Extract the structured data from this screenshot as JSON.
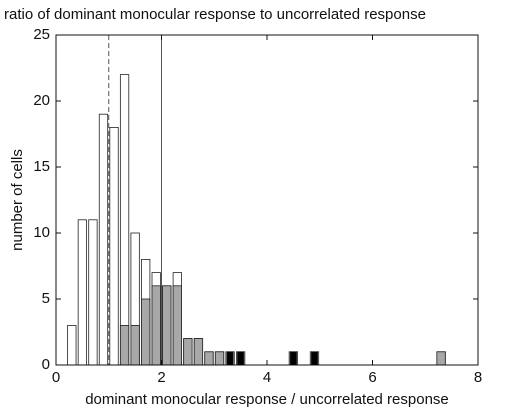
{
  "chart_data": {
    "type": "histogram",
    "title": "ratio of dominant monocular response to uncorrelated response",
    "x_label": "dominant monocular response / uncorrelated response",
    "y_label": "number of cells",
    "bins": [
      0.2,
      0.4,
      0.6,
      0.8,
      1.0,
      1.2,
      1.4,
      1.6,
      1.8,
      2.0,
      2.2,
      2.4,
      2.6,
      2.8,
      3.0,
      3.2,
      3.4,
      3.6,
      3.8,
      4.0,
      4.2,
      4.4,
      4.6,
      4.8,
      5.0,
      5.2,
      5.4,
      5.6,
      5.8,
      6.0,
      6.2,
      6.4,
      6.6,
      6.8,
      7.0,
      7.2,
      7.4,
      7.6
    ],
    "series": [
      {
        "color": "#ffffff",
        "values": [
          3,
          11,
          11,
          19,
          18,
          22,
          10,
          8,
          7,
          6,
          7,
          2,
          2,
          1,
          1,
          1,
          1,
          0,
          0,
          0,
          0,
          1,
          0,
          1,
          0,
          0,
          0,
          0,
          0,
          0,
          0,
          0,
          0,
          0,
          0,
          1,
          0
        ]
      },
      {
        "color": "#a8a8a8",
        "values": [
          0,
          0,
          0,
          0,
          0,
          3,
          3,
          5,
          6,
          6,
          6,
          2,
          2,
          1,
          1,
          0,
          0,
          0,
          0,
          0,
          0,
          0,
          0,
          0,
          0,
          0,
          0,
          0,
          0,
          0,
          0,
          0,
          0,
          0,
          0,
          1,
          0
        ]
      },
      {
        "color": "#000000",
        "values": [
          0,
          0,
          0,
          0,
          0,
          0,
          0,
          0,
          0,
          0,
          0,
          0,
          0,
          0,
          0,
          1,
          1,
          0,
          0,
          0,
          0,
          1,
          0,
          1,
          0,
          0,
          0,
          0,
          0,
          0,
          0,
          0,
          0,
          0,
          0,
          0,
          0
        ]
      }
    ],
    "vlines": [
      {
        "x": 1,
        "style": "dashed"
      },
      {
        "x": 2,
        "style": "solid"
      }
    ],
    "xlim": [
      0,
      8
    ],
    "xticks": [
      0,
      2,
      4,
      6,
      8
    ],
    "ylim": [
      0,
      25
    ],
    "yticks": [
      0,
      5,
      10,
      15,
      20,
      25
    ]
  }
}
